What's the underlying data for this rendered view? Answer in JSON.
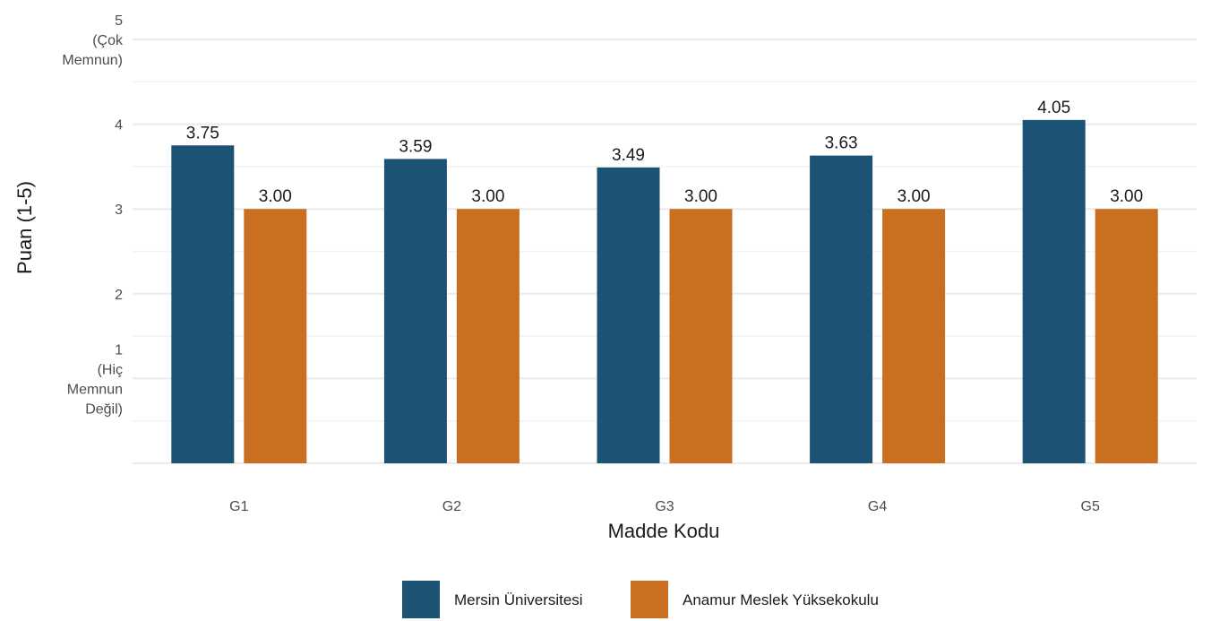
{
  "chart_data": {
    "type": "bar",
    "categories": [
      "G1",
      "G2",
      "G3",
      "G4",
      "G5"
    ],
    "series": [
      {
        "name": "Mersin Üniversitesi",
        "color": "#1c5274",
        "values": [
          3.75,
          3.59,
          3.49,
          3.63,
          4.05
        ],
        "labels": [
          "3.75",
          "3.59",
          "3.49",
          "3.63",
          "4.05"
        ]
      },
      {
        "name": "Anamur Meslek Yüksekokulu",
        "color": "#c96f1f",
        "values": [
          3.0,
          3.0,
          3.0,
          3.0,
          3.0
        ],
        "labels": [
          "3.00",
          "3.00",
          "3.00",
          "3.00",
          "3.00"
        ]
      }
    ],
    "xlabel": "Madde Kodu",
    "ylabel": "Puan (1-5)",
    "ylim": [
      0,
      5
    ],
    "yticks": [
      {
        "value": 1,
        "lines": [
          "1",
          "(Hiç",
          "Memnun",
          "Değil)"
        ]
      },
      {
        "value": 2,
        "lines": [
          "2"
        ]
      },
      {
        "value": 3,
        "lines": [
          "3"
        ]
      },
      {
        "value": 4,
        "lines": [
          "4"
        ]
      },
      {
        "value": 5,
        "lines": [
          "5",
          "(Çok",
          "Memnun)"
        ]
      }
    ],
    "grid": true,
    "legend_position": "bottom"
  }
}
